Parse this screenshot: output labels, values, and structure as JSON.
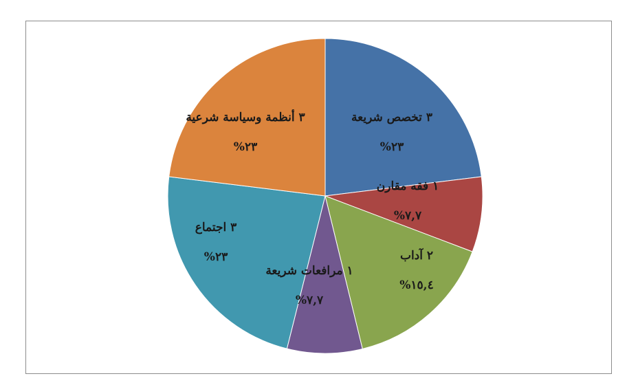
{
  "chart_data": {
    "type": "pie",
    "title": "",
    "series": [
      {
        "name": "",
        "slices": [
          {
            "category": "تخصص شريعة",
            "count": 3,
            "count_text": "٣",
            "percent": 23.0,
            "percent_text": "%٢٣",
            "color": "#4572a7"
          },
          {
            "category": "فقه مقارن",
            "count": 1,
            "count_text": "١",
            "percent": 7.7,
            "percent_text": "%٧,٧",
            "color": "#aa4643"
          },
          {
            "category": "آداب",
            "count": 2,
            "count_text": "٢",
            "percent": 15.4,
            "percent_text": "%١٥,٤",
            "color": "#89a54e"
          },
          {
            "category": "مرافعات شريعة",
            "count": 1,
            "count_text": "١",
            "percent": 7.7,
            "percent_text": "%٧,٧",
            "color": "#71588f"
          },
          {
            "category": "اجتماع",
            "count": 3,
            "count_text": "٣",
            "percent": 23.0,
            "percent_text": "%٢٣",
            "color": "#4198af"
          },
          {
            "category": "أنظمة وسياسة شرعية",
            "count": 3,
            "count_text": "٣",
            "percent": 23.0,
            "percent_text": "%٢٣",
            "color": "#db843d"
          }
        ]
      }
    ],
    "start": "top",
    "direction": "clockwise",
    "legend": "none"
  }
}
